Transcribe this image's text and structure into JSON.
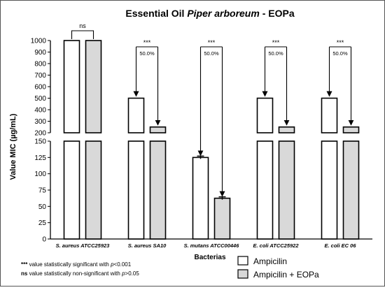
{
  "chart_data": {
    "type": "bar",
    "title_prefix": "Essential Oil ",
    "title_italic": "Piper arboreum",
    "title_suffix": " - EOPa",
    "xlabel": "Bacterias",
    "ylabel": "Value MIC (µg/mL)",
    "y_break": true,
    "lower_ylim": [
      0,
      150
    ],
    "lower_ticks": [
      0,
      25,
      50,
      75,
      100,
      125,
      150
    ],
    "upper_ylim": [
      200,
      1000
    ],
    "upper_ticks": [
      200,
      300,
      400,
      500,
      600,
      700,
      800,
      900,
      1000
    ],
    "categories": [
      {
        "species": "S. aureus",
        "strain": " ATCC25923"
      },
      {
        "species": "S. aureus",
        "strain": " SA10"
      },
      {
        "species": "S. mutans",
        "strain": " ATCC00446"
      },
      {
        "species": "E. coli",
        "strain": " ATCC25922"
      },
      {
        "species": "E. coli",
        "strain": " EC 06"
      }
    ],
    "series": [
      {
        "name": "Ampicilin",
        "color": "#ffffff",
        "values": [
          1000,
          500,
          125,
          500,
          500
        ]
      },
      {
        "name": "Ampicilin + EOPa",
        "color": "#d9d9d9",
        "values": [
          1000,
          250,
          62.5,
          250,
          250
        ]
      }
    ],
    "significance": [
      "ns",
      "***",
      "***",
      "***",
      "***"
    ],
    "reduction_labels": [
      "",
      "50.0%",
      "50.0%",
      "50.0%",
      "50.0%"
    ],
    "grid": false,
    "legend_position": "bottom-right"
  },
  "footnotes": [
    {
      "symbol": "***",
      "text_before": " value statistically significant with ",
      "pvar": "p",
      "text_after": "<0.001"
    },
    {
      "symbol": "ns",
      "text_before": "  value statistically non-significant with ",
      "pvar": "p",
      "text_after": ">0.05"
    }
  ]
}
